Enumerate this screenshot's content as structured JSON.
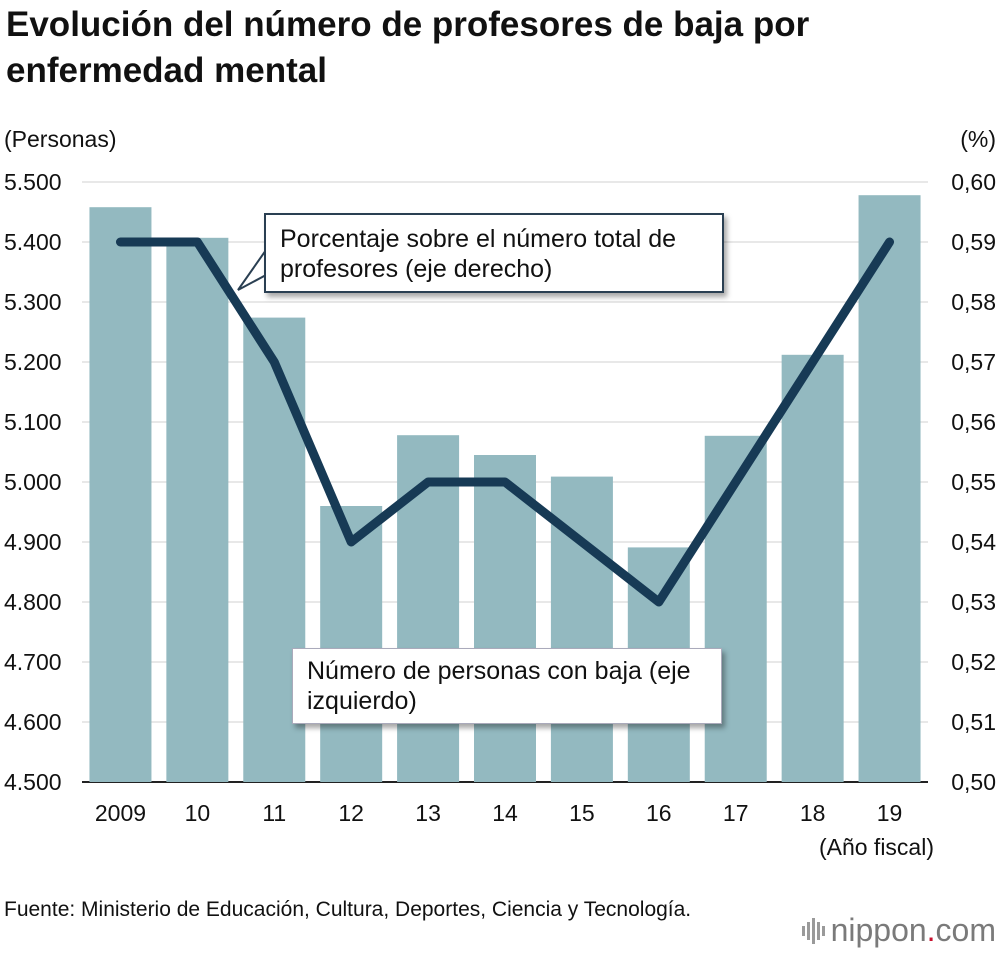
{
  "header": {
    "title": "Evolución del número de profesores de baja por enfermedad mental"
  },
  "axes": {
    "left_unit": "(Personas)",
    "right_unit": "(%)",
    "x_unit": "(Año fiscal)",
    "left_ticks": [
      "5.500",
      "5.400",
      "5.300",
      "5.200",
      "5.100",
      "5.000",
      "4.900",
      "4.800",
      "4.700",
      "4.600",
      "4.500"
    ],
    "right_ticks": [
      "0,60",
      "0,59",
      "0,58",
      "0,57",
      "0,56",
      "0,55",
      "0,54",
      "0,53",
      "0,52",
      "0,51",
      "0,50"
    ]
  },
  "annotations": {
    "line_label": "Porcentaje sobre el número total de profesores (eje derecho)",
    "bar_label": "Número de personas con baja (eje izquierdo)"
  },
  "footer": {
    "source": "Fuente: Ministerio de Educación, Cultura, Deportes, Ciencia y Tecnología.",
    "logo_main": "nippon",
    "logo_dot": ".",
    "logo_tld": "com"
  },
  "colors": {
    "bars": "#93b9c0",
    "line": "#173a55",
    "grid": "#d0d0d0"
  },
  "chart_data": {
    "type": "bar",
    "title": "Evolución del número de profesores de baja por enfermedad mental",
    "categories": [
      "2009",
      "10",
      "11",
      "12",
      "13",
      "14",
      "15",
      "16",
      "17",
      "18",
      "19"
    ],
    "series": [
      {
        "name": "Número de personas con baja (eje izquierdo)",
        "type": "bar",
        "axis": "left",
        "values": [
          5458,
          5407,
          5274,
          4960,
          5078,
          5045,
          5009,
          4891,
          5077,
          5212,
          5478
        ]
      },
      {
        "name": "Porcentaje sobre el número total de profesores (eje derecho)",
        "type": "line",
        "axis": "right",
        "values": [
          0.59,
          0.59,
          0.57,
          0.54,
          0.55,
          0.55,
          0.54,
          0.53,
          0.55,
          0.57,
          0.59
        ]
      }
    ],
    "ylim_left": [
      4500,
      5500
    ],
    "ylim_right": [
      0.5,
      0.6
    ],
    "ylabel_left": "(Personas)",
    "ylabel_right": "(%)",
    "xlabel": "(Año fiscal)",
    "grid": true
  }
}
